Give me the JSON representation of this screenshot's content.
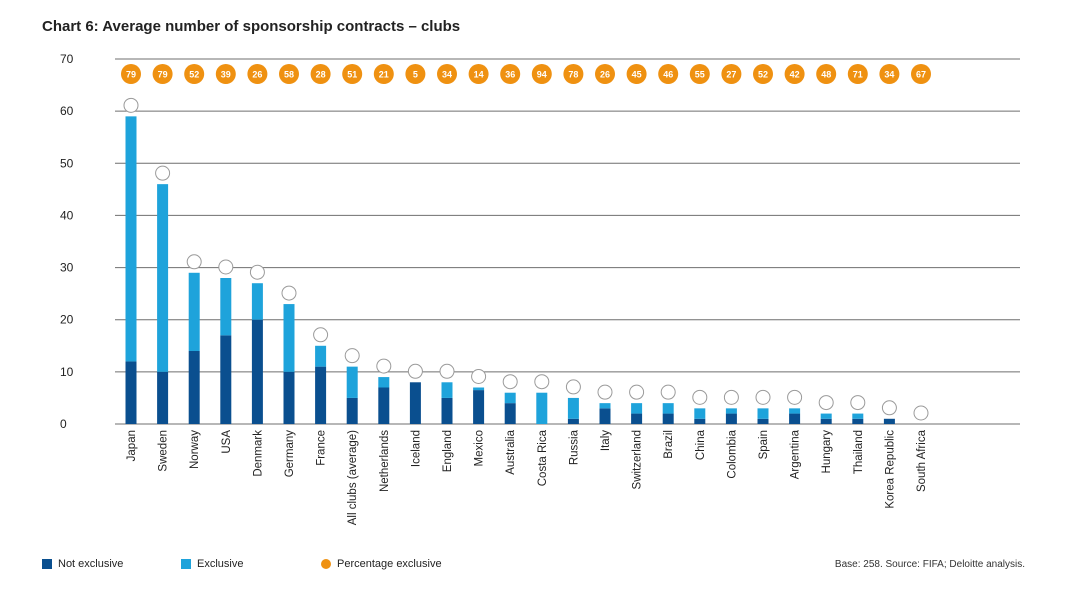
{
  "title": "Chart 6: Average number of sponsorship contracts – clubs",
  "legend": {
    "not_exclusive": "Not exclusive",
    "exclusive": "Exclusive",
    "percentage": "Percentage exclusive"
  },
  "source_note": "Base: 258. Source: FIFA; Deloitte analysis.",
  "colors": {
    "not_exclusive": "#0a4f8f",
    "exclusive": "#1ea3db",
    "percentage": "#ef9111",
    "gridline": "#6f6f6f"
  },
  "chart_data": {
    "type": "bar",
    "stacked": true,
    "title": "Chart 6: Average number of sponsorship contracts – clubs",
    "xlabel": "",
    "ylabel": "",
    "ylim": [
      0,
      70
    ],
    "yticks": [
      0,
      10,
      20,
      30,
      40,
      50,
      60,
      70
    ],
    "grid": true,
    "categories": [
      "Japan",
      "Sweden",
      "Norway",
      "USA",
      "Denmark",
      "Germany",
      "France",
      "All clubs (average)",
      "Netherlands",
      "Iceland",
      "England",
      "Mexico",
      "Australia",
      "Costa Rica",
      "Russia",
      "Italy",
      "Switzerland",
      "Brazil",
      "China",
      "Colombia",
      "Spain",
      "Argentina",
      "Hungary",
      "Thailand",
      "Korea Republic",
      "South Africa"
    ],
    "series": [
      {
        "name": "Not exclusive",
        "values": [
          12,
          10,
          14,
          17,
          20,
          10,
          11,
          5,
          7,
          8,
          5,
          6.5,
          4,
          0,
          1,
          3,
          2,
          2,
          1,
          2,
          1,
          2,
          1,
          1,
          1,
          0
        ]
      },
      {
        "name": "Exclusive",
        "values": [
          47,
          36,
          15,
          11,
          7,
          13,
          4,
          6,
          2,
          0,
          3,
          0.5,
          2,
          6,
          4,
          1,
          2,
          2,
          2,
          1,
          2,
          1,
          1,
          1,
          0,
          0
        ]
      }
    ],
    "percentage_exclusive": [
      79,
      79,
      52,
      39,
      26,
      58,
      28,
      51,
      21,
      5,
      34,
      14,
      36,
      94,
      78,
      26,
      45,
      46,
      55,
      27,
      52,
      42,
      48,
      71,
      34,
      67
    ],
    "legend_position": "bottom"
  }
}
